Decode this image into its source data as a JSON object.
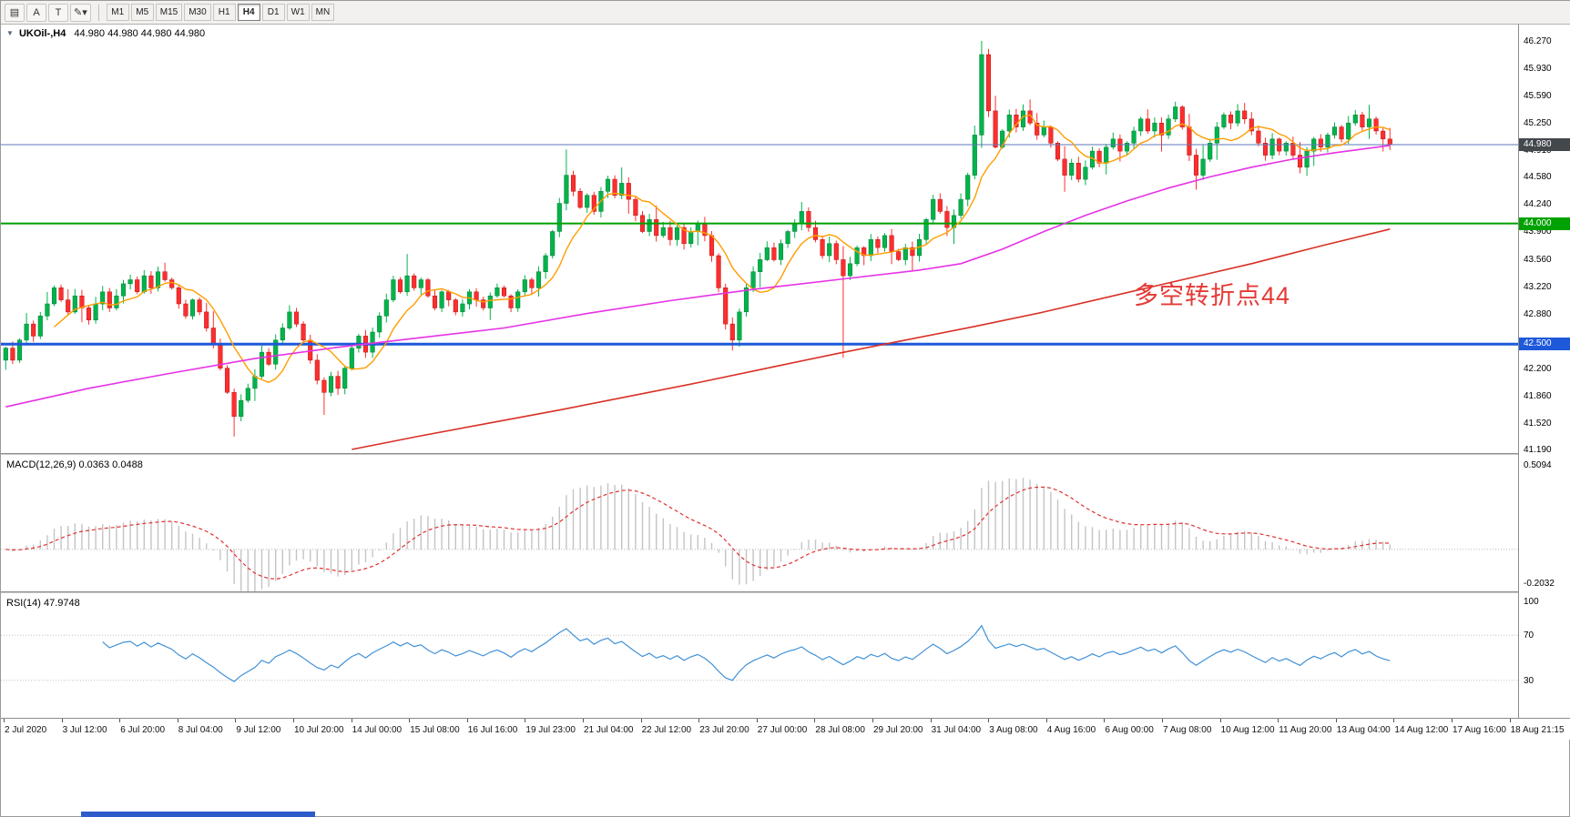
{
  "toolbar": {
    "tools": [
      {
        "name": "chart-mode",
        "glyph": "▤"
      },
      {
        "name": "text-tool",
        "glyph": "A"
      },
      {
        "name": "template-tool",
        "glyph": "T"
      },
      {
        "name": "draw-tool",
        "glyph": "✎",
        "caret": "▾"
      }
    ],
    "timeframes": [
      "M1",
      "M5",
      "M15",
      "M30",
      "H1",
      "H4",
      "D1",
      "W1",
      "MN"
    ],
    "active_timeframe": "H4"
  },
  "chart_header": {
    "collapse_glyph": "▼",
    "symbol_label": "UKOil-,H4",
    "ohlc": "44.980 44.980 44.980 44.980"
  },
  "annotation": {
    "text": "多空转折点44",
    "color": "#e53935"
  },
  "hlines": [
    {
      "price": 44.98,
      "color": "#5b79b8",
      "width": 1
    },
    {
      "price": 44.0,
      "color": "#00a100",
      "width": 2
    },
    {
      "price": 42.5,
      "color": "#1d59d9",
      "width": 3
    }
  ],
  "price_badges": [
    {
      "value": "44.980",
      "price": 44.98,
      "bg": "#43484d"
    },
    {
      "value": "44.000",
      "price": 44.0,
      "bg": "#00a100"
    },
    {
      "value": "42.500",
      "price": 42.5,
      "bg": "#1d59d9"
    }
  ],
  "macd_panel": {
    "label": "MACD(12,26,9) 0.0363 0.0488",
    "fast": 12,
    "slow": 26,
    "signal": 9,
    "axis_max": "0.5094",
    "axis_min": "-0.2032",
    "hist_color": "#c4c4c4",
    "signal_color": "#e03131"
  },
  "rsi_panel": {
    "label": "RSI(14) 47.9748",
    "period": 14,
    "levels": [
      100,
      70,
      30
    ],
    "line_color": "#4191d6"
  },
  "chart_data": {
    "type": "candlestick",
    "symbol": "UKOil-",
    "timeframe": "H4",
    "current_price": 44.98,
    "y_range": [
      41.19,
      46.27
    ],
    "price_tick_labels": [
      "46.270",
      "45.930",
      "45.590",
      "45.250",
      "44.910",
      "44.580",
      "44.240",
      "43.900",
      "43.560",
      "43.220",
      "42.880",
      "42.540",
      "42.200",
      "41.860",
      "41.520",
      "41.190"
    ],
    "time_labels": [
      "2 Jul 2020",
      "3 Jul 12:00",
      "6 Jul 20:00",
      "8 Jul 04:00",
      "9 Jul 12:00",
      "10 Jul 20:00",
      "14 Jul 00:00",
      "15 Jul 08:00",
      "16 Jul 16:00",
      "19 Jul 23:00",
      "21 Jul 04:00",
      "22 Jul 12:00",
      "23 Jul 20:00",
      "27 Jul 00:00",
      "28 Jul 08:00",
      "29 Jul 20:00",
      "31 Jul 04:00",
      "3 Aug 08:00",
      "4 Aug 16:00",
      "6 Aug 00:00",
      "7 Aug 08:00",
      "10 Aug 12:00",
      "11 Aug 20:00",
      "13 Aug 04:00",
      "14 Aug 12:00",
      "17 Aug 16:00",
      "18 Aug 21:15"
    ],
    "first_open": 42.3,
    "closes": [
      42.45,
      42.3,
      42.55,
      42.75,
      42.6,
      42.85,
      43.0,
      43.2,
      43.05,
      42.9,
      43.1,
      42.95,
      42.8,
      43.0,
      43.15,
      42.95,
      43.1,
      43.25,
      43.3,
      43.15,
      43.35,
      43.2,
      43.4,
      43.3,
      43.2,
      43.0,
      42.85,
      43.05,
      42.9,
      42.7,
      42.5,
      42.2,
      41.9,
      41.6,
      41.8,
      41.95,
      42.1,
      42.4,
      42.25,
      42.55,
      42.7,
      42.9,
      42.75,
      42.55,
      42.3,
      42.05,
      41.9,
      42.1,
      41.95,
      42.2,
      42.45,
      42.6,
      42.4,
      42.65,
      42.85,
      43.05,
      43.3,
      43.15,
      43.35,
      43.2,
      43.3,
      43.1,
      42.95,
      43.15,
      43.05,
      42.9,
      43.0,
      43.15,
      43.05,
      42.95,
      43.1,
      43.2,
      43.1,
      42.95,
      43.15,
      43.3,
      43.2,
      43.4,
      43.6,
      43.9,
      44.25,
      44.6,
      44.4,
      44.2,
      44.35,
      44.15,
      44.4,
      44.55,
      44.35,
      44.5,
      44.3,
      44.1,
      43.9,
      44.05,
      43.85,
      43.95,
      43.8,
      43.95,
      43.75,
      43.9,
      44.0,
      43.85,
      43.6,
      43.2,
      42.75,
      42.55,
      42.9,
      43.2,
      43.4,
      43.55,
      43.7,
      43.55,
      43.75,
      43.9,
      44.0,
      44.15,
      43.95,
      43.8,
      43.6,
      43.75,
      43.55,
      43.35,
      43.5,
      43.7,
      43.6,
      43.8,
      43.7,
      43.85,
      43.65,
      43.55,
      43.7,
      43.6,
      43.8,
      44.05,
      44.3,
      44.15,
      43.95,
      44.1,
      44.3,
      44.6,
      45.1,
      46.1,
      45.4,
      44.95,
      45.15,
      45.35,
      45.2,
      45.4,
      45.25,
      45.1,
      45.2,
      45.0,
      44.8,
      44.6,
      44.75,
      44.55,
      44.7,
      44.9,
      44.75,
      44.95,
      45.05,
      44.9,
      45.0,
      45.15,
      45.3,
      45.15,
      45.25,
      45.1,
      45.3,
      45.45,
      45.2,
      44.85,
      44.6,
      44.8,
      45.0,
      45.2,
      45.35,
      45.25,
      45.4,
      45.3,
      45.15,
      45.0,
      44.85,
      45.05,
      44.9,
      45.0,
      44.85,
      44.7,
      44.9,
      45.05,
      44.95,
      45.1,
      45.2,
      45.05,
      45.25,
      45.35,
      45.2,
      45.3,
      45.15,
      45.05,
      44.98
    ],
    "default_wick": 0.07,
    "wick_overrides": {
      "0": {
        "l": 42.18
      },
      "33": {
        "l": 41.35
      },
      "46": {
        "l": 41.62
      },
      "58": {
        "h": 43.62
      },
      "81": {
        "h": 44.92
      },
      "105": {
        "l": 42.42
      },
      "121": {
        "l": 42.33
      },
      "141": {
        "h": 46.27
      },
      "172": {
        "l": 44.42
      }
    },
    "colors": {
      "up": "#00b44b",
      "up_dark": "#007a31",
      "down": "#ff2e2e",
      "down_dark": "#b01212"
    },
    "ma": {
      "orange": {
        "type": "sma",
        "period": 8,
        "color": "#ff9d00"
      },
      "magenta": {
        "color": "#e632e6",
        "points": [
          [
            0,
            41.72
          ],
          [
            12,
            41.95
          ],
          [
            24,
            42.14
          ],
          [
            36,
            42.32
          ],
          [
            48,
            42.46
          ],
          [
            60,
            42.58
          ],
          [
            72,
            42.7
          ],
          [
            84,
            42.88
          ],
          [
            96,
            43.04
          ],
          [
            108,
            43.18
          ],
          [
            120,
            43.3
          ],
          [
            132,
            43.42
          ],
          [
            138,
            43.5
          ],
          [
            144,
            43.68
          ],
          [
            150,
            43.9
          ],
          [
            156,
            44.1
          ],
          [
            162,
            44.28
          ],
          [
            168,
            44.44
          ],
          [
            174,
            44.58
          ],
          [
            180,
            44.7
          ],
          [
            186,
            44.8
          ],
          [
            192,
            44.88
          ],
          [
            200,
            44.97
          ]
        ]
      },
      "red": {
        "color": "#d93025",
        "points": [
          [
            50,
            41.19
          ],
          [
            60,
            41.36
          ],
          [
            70,
            41.52
          ],
          [
            80,
            41.68
          ],
          [
            90,
            41.85
          ],
          [
            100,
            42.02
          ],
          [
            110,
            42.2
          ],
          [
            120,
            42.38
          ],
          [
            130,
            42.55
          ],
          [
            140,
            42.72
          ],
          [
            150,
            42.9
          ],
          [
            160,
            43.1
          ],
          [
            170,
            43.3
          ],
          [
            180,
            43.5
          ],
          [
            190,
            43.72
          ],
          [
            200,
            43.93
          ]
        ]
      }
    }
  },
  "misc": {
    "bottom_bar_color": "#2e5bcc"
  }
}
